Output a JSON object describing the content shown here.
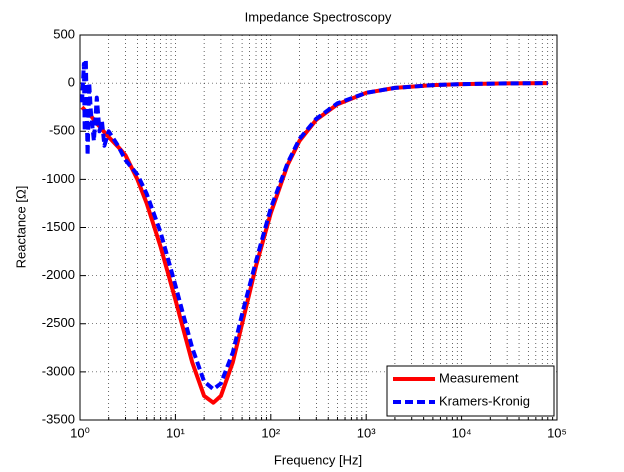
{
  "chart_data": {
    "type": "line",
    "title": "Impedance Spectroscopy",
    "x_label": "Frequency  [Hz]",
    "y_label": "Reactance  [Ω]",
    "x_scale": "log",
    "grid": true,
    "legend_position": "lower right",
    "x": [
      1.05,
      1.1,
      1.12,
      1.15,
      1.2,
      1.25,
      1.3,
      1.4,
      1.5,
      1.6,
      1.7,
      1.8,
      2,
      2.5,
      3,
      4,
      5,
      7,
      10,
      15,
      20,
      25,
      30,
      40,
      50,
      70,
      100,
      150,
      200,
      300,
      500,
      1000,
      2000,
      5000,
      10000,
      30000,
      80000
    ],
    "series": [
      {
        "name": "Measurement",
        "color": "#ff0000",
        "style": "solid",
        "values": [
          -250,
          -270,
          -280,
          -290,
          -300,
          -320,
          -340,
          -380,
          -420,
          -450,
          -480,
          -510,
          -560,
          -660,
          -750,
          -1000,
          -1250,
          -1700,
          -2250,
          -2900,
          -3250,
          -3320,
          -3250,
          -2900,
          -2500,
          -1900,
          -1350,
          -850,
          -600,
          -380,
          -220,
          -100,
          -50,
          -20,
          -10,
          -3,
          0
        ]
      },
      {
        "name": "Kramers-Kronig",
        "color": "#0000ff",
        "style": "dashed",
        "values": [
          -200,
          200,
          -500,
          250,
          -750,
          0,
          -300,
          -600,
          -150,
          -500,
          -400,
          -650,
          -500,
          -650,
          -800,
          -950,
          -1150,
          -1550,
          -2100,
          -2750,
          -3100,
          -3180,
          -3120,
          -2800,
          -2400,
          -1850,
          -1300,
          -830,
          -580,
          -370,
          -210,
          -100,
          -50,
          -20,
          -10,
          -3,
          0
        ]
      }
    ],
    "xlim": [
      1,
      100000
    ],
    "xticks": [
      {
        "value": 1,
        "label": "10⁰"
      },
      {
        "value": 10,
        "label": "10¹"
      },
      {
        "value": 100,
        "label": "10²"
      },
      {
        "value": 1000,
        "label": "10³"
      },
      {
        "value": 10000,
        "label": "10⁴"
      },
      {
        "value": 100000,
        "label": "10⁵"
      }
    ],
    "ylim": [
      -3500,
      500
    ],
    "yticks": [
      -3500,
      -3000,
      -2500,
      -2000,
      -1500,
      -1000,
      -500,
      0,
      500
    ]
  }
}
